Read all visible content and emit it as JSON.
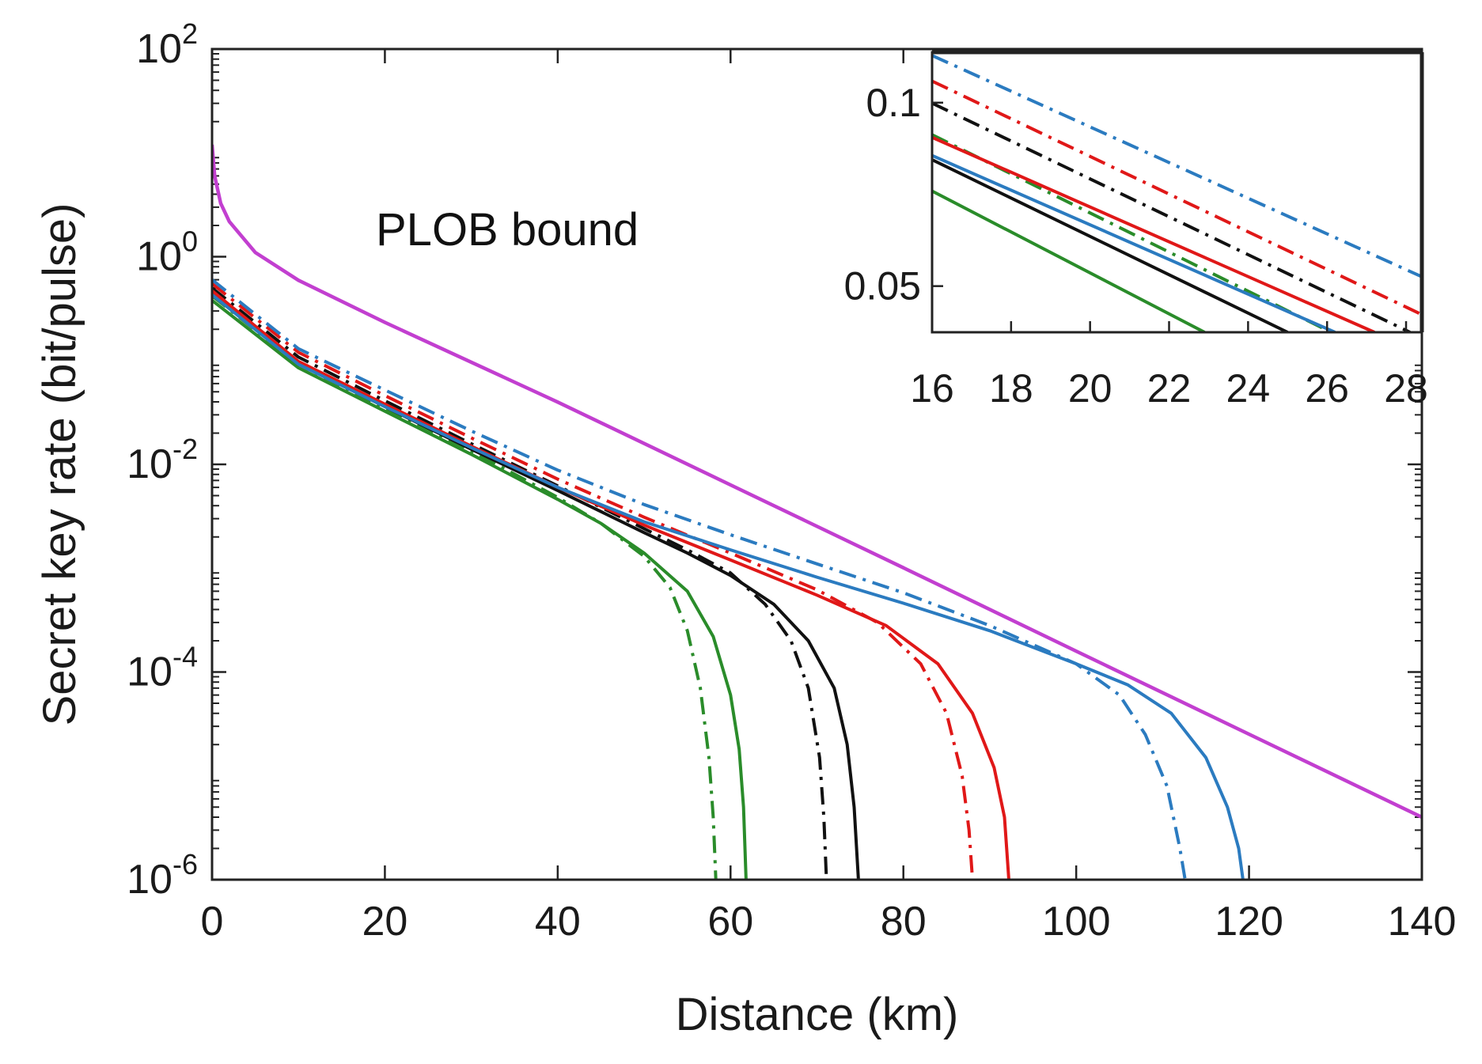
{
  "chart_data": [
    {
      "type": "line",
      "xlabel": "Distance (km)",
      "ylabel": "Secret key rate (bit/pulse)",
      "xlim": [
        0,
        140
      ],
      "ylim": [
        1e-06,
        100
      ],
      "yscale": "log",
      "xticks": [
        "0",
        "20",
        "40",
        "60",
        "80",
        "100",
        "120",
        "140"
      ],
      "yticks": [
        {
          "base": "10",
          "exp": "-6"
        },
        {
          "base": "10",
          "exp": "-4"
        },
        {
          "base": "10",
          "exp": "-2"
        },
        {
          "base": "10",
          "exp": "0"
        },
        {
          "base": "10",
          "exp": "2"
        }
      ],
      "annotation": "PLOB bound",
      "series": [
        {
          "color": "#c23fd0",
          "style": "solid",
          "width": 4.5,
          "x": [
            0,
            0.05,
            0.3,
            1,
            2,
            5,
            10,
            20,
            40,
            60,
            80,
            100,
            120,
            140
          ],
          "y": [
            12,
            10.8,
            6.0,
            3.27,
            2.18,
            1.1,
            0.593,
            0.233,
            0.0398,
            0.00634,
            0.00101,
            0.000159,
            2.52e-05,
            4e-06
          ]
        },
        {
          "color": "#2a8c2a",
          "style": "dashdot",
          "width": 4,
          "x": [
            0,
            10,
            20,
            30,
            40,
            45,
            50,
            53,
            55,
            56.5,
            57.5,
            58.0,
            58.3
          ],
          "y": [
            0.42,
            0.092,
            0.035,
            0.0135,
            0.0048,
            0.0027,
            0.0013,
            0.00065,
            0.00025,
            7e-05,
            1.5e-05,
            4e-06,
            1e-06
          ]
        },
        {
          "color": "#2a8c2a",
          "style": "solid",
          "width": 4,
          "x": [
            0,
            10,
            20,
            30,
            40,
            45,
            50,
            55,
            58,
            60,
            61,
            61.5,
            61.8
          ],
          "y": [
            0.38,
            0.085,
            0.0325,
            0.0125,
            0.0046,
            0.0027,
            0.0014,
            0.0006,
            0.00022,
            6e-05,
            1.8e-05,
            5e-06,
            1e-06
          ]
        },
        {
          "color": "#111111",
          "style": "dashdot",
          "width": 4,
          "x": [
            0,
            10,
            20,
            30,
            40,
            50,
            55,
            60,
            64,
            67,
            69,
            70.3,
            70.8,
            71.1
          ],
          "y": [
            0.5,
            0.108,
            0.041,
            0.0158,
            0.0062,
            0.0024,
            0.0015,
            0.0009,
            0.00045,
            0.0002,
            7e-05,
            1.5e-05,
            4e-06,
            1e-06
          ]
        },
        {
          "color": "#111111",
          "style": "solid",
          "width": 4,
          "x": [
            0,
            10,
            20,
            30,
            40,
            50,
            55,
            60,
            65,
            69,
            72,
            73.5,
            74.3,
            74.8
          ],
          "y": [
            0.44,
            0.093,
            0.036,
            0.014,
            0.0056,
            0.0022,
            0.0014,
            0.00085,
            0.00045,
            0.0002,
            7e-05,
            2e-05,
            5e-06,
            1e-06
          ]
        },
        {
          "color": "#e01818",
          "style": "dashdot",
          "width": 4,
          "x": [
            0,
            10,
            20,
            30,
            40,
            50,
            60,
            70,
            77,
            82,
            85,
            86.8,
            87.6,
            88.0
          ],
          "y": [
            0.55,
            0.12,
            0.046,
            0.018,
            0.0072,
            0.0031,
            0.0014,
            0.00062,
            0.0003,
            0.00012,
            4e-05,
            1e-05,
            3e-06,
            1e-06
          ]
        },
        {
          "color": "#e01818",
          "style": "solid",
          "width": 4,
          "x": [
            0,
            10,
            20,
            30,
            40,
            50,
            60,
            70,
            78,
            84,
            88,
            90.5,
            91.7,
            92.2
          ],
          "y": [
            0.47,
            0.098,
            0.038,
            0.015,
            0.006,
            0.0026,
            0.0012,
            0.00055,
            0.00028,
            0.00012,
            4e-05,
            1.2e-05,
            4e-06,
            1e-06
          ]
        },
        {
          "color": "#2b7bc0",
          "style": "dashdot",
          "width": 4,
          "x": [
            0,
            10,
            20,
            30,
            40,
            50,
            60,
            70,
            80,
            90,
            100,
            105,
            108,
            110.5,
            112.0,
            112.6
          ],
          "y": [
            0.6,
            0.13,
            0.052,
            0.021,
            0.0088,
            0.0041,
            0.0021,
            0.0011,
            0.00058,
            0.00028,
            0.00012,
            6e-05,
            2.5e-05,
            8e-06,
            2e-06,
            1e-06
          ]
        },
        {
          "color": "#2b7bc0",
          "style": "solid",
          "width": 4,
          "x": [
            0,
            10,
            20,
            30,
            40,
            50,
            60,
            70,
            80,
            90,
            100,
            106,
            111,
            115,
            117.5,
            118.8,
            119.3
          ],
          "y": [
            0.43,
            0.092,
            0.036,
            0.0145,
            0.006,
            0.0028,
            0.0015,
            0.00082,
            0.00046,
            0.00025,
            0.00012,
            7.5e-05,
            4e-05,
            1.5e-05,
            5e-06,
            2e-06,
            1e-06
          ]
        }
      ]
    },
    {
      "type": "line",
      "role": "inset",
      "xlim": [
        16,
        28.4
      ],
      "ylim": [
        0.042,
        0.121
      ],
      "yscale": "log",
      "xticks": [
        "16",
        "18",
        "20",
        "22",
        "24",
        "26",
        "28"
      ],
      "yticks": [
        "0.05",
        "0.1"
      ],
      "series": [
        {
          "color": "#2b7bc0",
          "style": "dashdot",
          "x": [
            16,
            28.4
          ],
          "y": [
            0.1195,
            0.0518
          ]
        },
        {
          "color": "#e01818",
          "style": "dashdot",
          "x": [
            16,
            28.4
          ],
          "y": [
            0.1085,
            0.0449
          ]
        },
        {
          "color": "#111111",
          "style": "dashdot",
          "x": [
            16,
            28.1
          ],
          "y": [
            0.0998,
            0.042
          ]
        },
        {
          "color": "#2a8c2a",
          "style": "dashdot",
          "x": [
            16,
            26.1
          ],
          "y": [
            0.0886,
            0.042
          ]
        },
        {
          "color": "#e01818",
          "style": "solid",
          "x": [
            16,
            27.2
          ],
          "y": [
            0.0877,
            0.042
          ]
        },
        {
          "color": "#2b7bc0",
          "style": "solid",
          "x": [
            16,
            26.2
          ],
          "y": [
            0.0819,
            0.042
          ]
        },
        {
          "color": "#111111",
          "style": "solid",
          "x": [
            16,
            25.0
          ],
          "y": [
            0.0806,
            0.042
          ]
        },
        {
          "color": "#2a8c2a",
          "style": "solid",
          "x": [
            16,
            22.9
          ],
          "y": [
            0.0716,
            0.042
          ]
        }
      ]
    }
  ]
}
